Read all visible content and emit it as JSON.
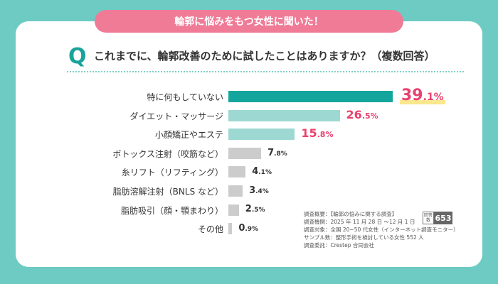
{
  "banner": "輪郭に悩みをもつ女性に聞いた！",
  "question": {
    "letter": "Q",
    "text": "これまでに、輪郭改善のために試したことはありますか？（複数回答）"
  },
  "colors": {
    "top": "#14a69c",
    "mid": "#9ed8d2",
    "low": "#cccccc",
    "pink": "#e8426e",
    "dark": "#333333"
  },
  "chart_data": {
    "type": "bar",
    "orientation": "horizontal",
    "unit": "%",
    "categories": [
      "特に何もしていない",
      "ダイエット・マッサージ",
      "小顔矯正やエステ",
      "ボトックス注射（咬筋など）",
      "糸リフト（リフティング）",
      "脂肪溶解注射（BNLS など）",
      "脂肪吸引（顔・顎まわり）",
      "その他"
    ],
    "values": [
      39.1,
      26.5,
      15.8,
      7.8,
      4.1,
      3.4,
      2.5,
      0.9
    ],
    "xlim": [
      0,
      39.1
    ]
  },
  "survey": {
    "lines": [
      "調査概要：【輪郭の悩みに関する調査】",
      "調査機関：2025 年 11 月 28 日 ～12 月 1 日",
      "調査対象：全国 20~50 代女性（インターネット調査モニター）",
      "サンプル数：整形手術を検討している女性 552 人",
      "調査委託：Crestep 合同会社"
    ],
    "n_label": "回答数",
    "n_value": "653"
  }
}
